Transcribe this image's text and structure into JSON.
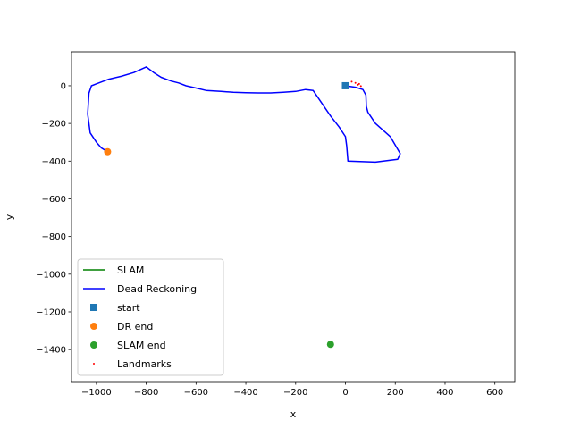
{
  "chart_data": {
    "type": "line",
    "xlabel": "x",
    "ylabel": "y",
    "xlim": [
      -1100,
      680
    ],
    "ylim": [
      -1570,
      180
    ],
    "xticks": [
      -1000,
      -800,
      -600,
      -400,
      -200,
      0,
      200,
      400,
      600
    ],
    "yticks": [
      -1400,
      -1200,
      -1000,
      -800,
      -600,
      -400,
      -200,
      0
    ],
    "xtick_labels": [
      "−1000",
      "−800",
      "−600",
      "−400",
      "−200",
      "0",
      "200",
      "400",
      "600"
    ],
    "ytick_labels": [
      "−1400",
      "−1200",
      "−1000",
      "−800",
      "−600",
      "−400",
      "−200",
      "0"
    ],
    "grid": false,
    "legend_position": "lower-left",
    "series": [
      {
        "name": "SLAM",
        "kind": "line",
        "color": "#008000",
        "x": [],
        "y": []
      },
      {
        "name": "Dead Reckoning",
        "kind": "line",
        "color": "#0000ff",
        "x": [
          0,
          40,
          70,
          82,
          84,
          90,
          120,
          180,
          220,
          210,
          120,
          10,
          5,
          0,
          -25,
          -60,
          -130,
          -160,
          -200,
          -250,
          -300,
          -350,
          -400,
          -450,
          -500,
          -560,
          -600,
          -640,
          -670,
          -700,
          -740,
          -770,
          -800,
          -850,
          -900,
          -950,
          -1000,
          -1020,
          -1030,
          -1035,
          -1025,
          -1000,
          -980,
          -955
        ],
        "y": [
          0,
          -8,
          -20,
          -50,
          -110,
          -140,
          -200,
          -270,
          -360,
          -390,
          -405,
          -400,
          -320,
          -270,
          -220,
          -160,
          -25,
          -20,
          -30,
          -35,
          -38,
          -38,
          -37,
          -35,
          -30,
          -25,
          -12,
          0,
          15,
          25,
          45,
          70,
          100,
          70,
          50,
          35,
          10,
          0,
          -40,
          -150,
          -250,
          -300,
          -330,
          -350
        ]
      },
      {
        "name": "start",
        "kind": "marker",
        "marker": "square",
        "color": "#1f77b4",
        "x": [
          0
        ],
        "y": [
          0
        ]
      },
      {
        "name": "DR end",
        "kind": "marker",
        "marker": "circle",
        "color": "#ff7f0e",
        "x": [
          -955
        ],
        "y": [
          -350
        ]
      },
      {
        "name": "SLAM end",
        "kind": "marker",
        "marker": "circle",
        "color": "#2ca02c",
        "x": [
          -60
        ],
        "y": [
          -1372
        ]
      },
      {
        "name": "Landmarks",
        "kind": "scatter",
        "marker": "dot",
        "color": "#ff0000",
        "x": [
          25,
          40,
          50,
          55,
          62
        ],
        "y": [
          22,
          15,
          5,
          10,
          -2
        ]
      }
    ]
  }
}
